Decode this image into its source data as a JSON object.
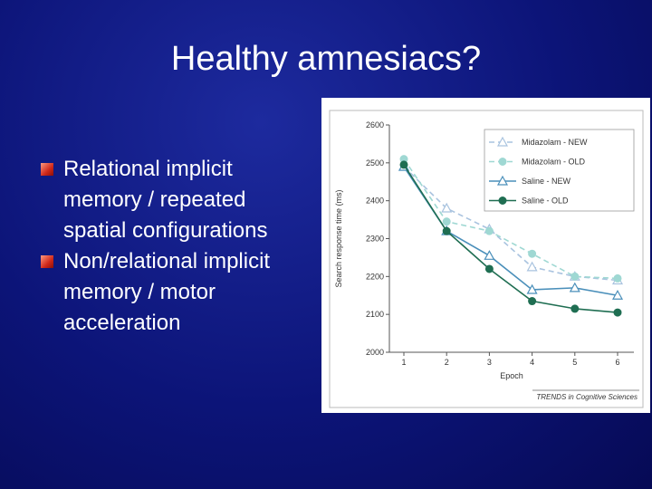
{
  "slide": {
    "title": "Healthy amnesiacs?",
    "bullets": [
      [
        "Relational implicit",
        "memory / repeated",
        "spatial configurations"
      ],
      [
        "Non/relational implicit",
        "memory / motor",
        "acceleration"
      ]
    ]
  },
  "chart_data": {
    "type": "line",
    "x_label": "Epoch",
    "y_label": "Search response time (ms)",
    "source": "TRENDS in Cognitive Sciences",
    "categories": [
      "1",
      "2",
      "3",
      "4",
      "5",
      "6"
    ],
    "ylim": [
      2000,
      2600
    ],
    "yticks": [
      2000,
      2100,
      2200,
      2300,
      2400,
      2500,
      2600
    ],
    "series": [
      {
        "name": "Midazolam - NEW",
        "color": "#a9c3df",
        "dashed": true,
        "marker": "triangle",
        "values": [
          2490,
          2380,
          2325,
          2225,
          2200,
          2190
        ]
      },
      {
        "name": "Midazolam - OLD",
        "color": "#9fd8d3",
        "dashed": true,
        "marker": "circle",
        "values": [
          2510,
          2345,
          2320,
          2260,
          2200,
          2195
        ]
      },
      {
        "name": "Saline - NEW",
        "color": "#4a8fba",
        "dashed": false,
        "marker": "triangle",
        "values": [
          2490,
          2320,
          2255,
          2165,
          2170,
          2150
        ]
      },
      {
        "name": "Saline - OLD",
        "color": "#1f6e52",
        "dashed": false,
        "marker": "circle",
        "values": [
          2495,
          2320,
          2220,
          2135,
          2115,
          2105
        ]
      }
    ]
  }
}
